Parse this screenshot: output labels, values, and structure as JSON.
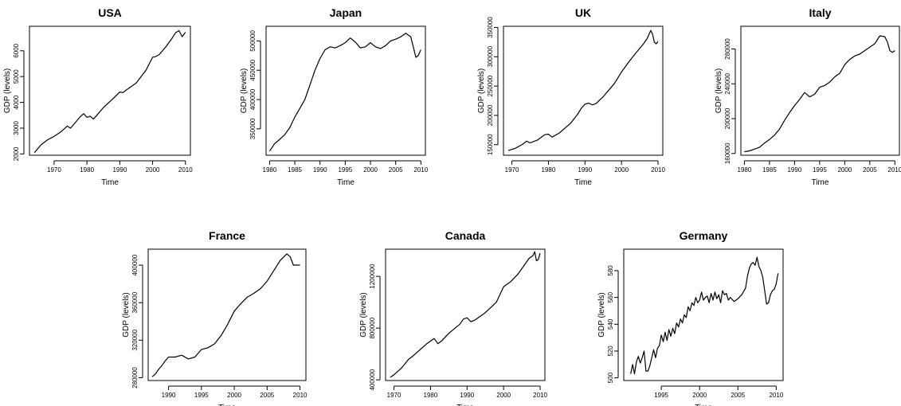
{
  "chart_data": [
    {
      "type": "line",
      "title": "USA",
      "xlabel": "Time",
      "ylabel": "GDP (levels)",
      "xlim": [
        1962.5,
        2011.5
      ],
      "ylim": [
        1950,
        6950
      ],
      "xticks": [
        1970,
        1980,
        1990,
        2000,
        2010
      ],
      "yticks": [
        2000,
        3000,
        4000,
        5000,
        6000
      ],
      "x": [
        1964,
        1966,
        1968,
        1970,
        1972,
        1974,
        1975,
        1976,
        1978,
        1979,
        1980,
        1981,
        1982,
        1983,
        1985,
        1988,
        1990,
        1991,
        1992,
        1995,
        1998,
        2000,
        2001,
        2002,
        2004,
        2006,
        2007,
        2008,
        2009,
        2010
      ],
      "series": [
        {
          "values": [
            2050,
            2350,
            2550,
            2680,
            2850,
            3080,
            3000,
            3150,
            3450,
            3560,
            3420,
            3460,
            3350,
            3500,
            3800,
            4150,
            4400,
            4380,
            4480,
            4750,
            5250,
            5750,
            5780,
            5850,
            6150,
            6500,
            6700,
            6780,
            6550,
            6720
          ]
        }
      ]
    },
    {
      "type": "line",
      "title": "Japan",
      "xlabel": "Time",
      "ylabel": "GDP (levels)",
      "xlim": [
        1979.3,
        2010.9
      ],
      "ylim": [
        305000,
        525000
      ],
      "xticks": [
        1980,
        1985,
        1990,
        1995,
        2000,
        2005,
        2010
      ],
      "yticks": [
        350000,
        400000,
        450000,
        500000
      ],
      "x": [
        1980,
        1981,
        1982,
        1983,
        1984,
        1985,
        1986,
        1987,
        1988,
        1989,
        1990,
        1991,
        1992,
        1993,
        1994,
        1995,
        1996,
        1997,
        1998,
        1999,
        2000,
        2001,
        2002,
        2003,
        2004,
        2005,
        2006,
        2007,
        2008,
        2008.5,
        2009,
        2009.5,
        2010
      ],
      "series": [
        {
          "values": [
            312000,
            325000,
            332000,
            340000,
            352000,
            370000,
            385000,
            400000,
            425000,
            450000,
            470000,
            485000,
            490000,
            488000,
            492000,
            497000,
            505000,
            498000,
            488000,
            490000,
            497000,
            490000,
            487000,
            492000,
            500000,
            503000,
            507000,
            513000,
            507000,
            490000,
            472000,
            475000,
            485000
          ]
        }
      ]
    },
    {
      "type": "line",
      "title": "UK",
      "xlabel": "Time",
      "ylabel": "GDP (levels)",
      "xlim": [
        1967.7,
        2011.3
      ],
      "ylim": [
        132000,
        352000
      ],
      "xticks": [
        1970,
        1980,
        1990,
        2000,
        2010
      ],
      "yticks": [
        150000,
        200000,
        250000,
        300000,
        350000
      ],
      "x": [
        1969,
        1971,
        1973,
        1974,
        1975,
        1977,
        1979,
        1980,
        1981,
        1983,
        1986,
        1988,
        1989,
        1990,
        1991,
        1992,
        1993,
        1995,
        1998,
        2000,
        2002,
        2004,
        2006,
        2007,
        2008,
        2008.5,
        2009,
        2009.5,
        2010
      ],
      "series": [
        {
          "values": [
            140000,
            144000,
            151000,
            156000,
            153000,
            158000,
            167000,
            168000,
            163000,
            170000,
            186000,
            202000,
            212000,
            219000,
            221000,
            218000,
            220000,
            232000,
            254000,
            274000,
            291000,
            307000,
            322000,
            331000,
            345000,
            338000,
            325000,
            322000,
            326000
          ]
        }
      ]
    },
    {
      "type": "line",
      "title": "Italy",
      "xlabel": "Time",
      "ylabel": "GDP (levels)",
      "xlim": [
        1979.3,
        2010.9
      ],
      "ylim": [
        158000,
        306000
      ],
      "xticks": [
        1980,
        1985,
        1990,
        1995,
        2000,
        2005,
        2010
      ],
      "yticks": [
        160000,
        200000,
        240000,
        280000
      ],
      "x": [
        1980,
        1981,
        1982,
        1983,
        1984,
        1985,
        1986,
        1987,
        1988,
        1989,
        1990,
        1991,
        1992,
        1993,
        1994,
        1995,
        1996,
        1997,
        1998,
        1999,
        2000,
        2001,
        2002,
        2003,
        2004,
        2005,
        2006,
        2007,
        2008,
        2008.5,
        2009,
        2009.5,
        2010
      ],
      "series": [
        {
          "values": [
            162000,
            163000,
            165000,
            167000,
            172000,
            176000,
            181000,
            188000,
            198000,
            207000,
            215000,
            222000,
            230000,
            225000,
            228000,
            236000,
            238000,
            242000,
            248000,
            252000,
            262000,
            268000,
            272000,
            274000,
            278000,
            282000,
            286000,
            295000,
            294000,
            288000,
            278000,
            276000,
            278000
          ]
        }
      ]
    },
    {
      "type": "line",
      "title": "France",
      "xlabel": "Time",
      "ylabel": "GDP (levels)",
      "xlim": [
        1986.9,
        2010.9
      ],
      "ylim": [
        277000,
        417000
      ],
      "xticks": [
        1990,
        1995,
        2000,
        2005,
        2010
      ],
      "yticks": [
        280000,
        320000,
        360000,
        400000
      ],
      "x": [
        1987.5,
        1988,
        1988.5,
        1989,
        1989.5,
        1990,
        1991,
        1992,
        1993,
        1994,
        1995,
        1996,
        1997,
        1998,
        1999,
        2000,
        2001,
        2002,
        2003,
        2004,
        2005,
        2006,
        2007,
        2008,
        2008.5,
        2009,
        2009.5,
        2010
      ],
      "series": [
        {
          "values": [
            281000,
            284000,
            289000,
            293000,
            298000,
            302000,
            302000,
            304000,
            300000,
            302000,
            310000,
            312000,
            316000,
            325000,
            337000,
            351000,
            359000,
            366000,
            370000,
            375000,
            383000,
            394000,
            405000,
            412000,
            409000,
            400000,
            400000,
            400000
          ]
        }
      ]
    },
    {
      "type": "line",
      "title": "Canada",
      "xlabel": "Time",
      "ylabel": "GDP (levels)",
      "xlim": [
        1967.7,
        2011.3
      ],
      "ylim": [
        395000,
        1410000
      ],
      "xticks": [
        1970,
        1980,
        1990,
        2000,
        2010
      ],
      "yticks": [
        400000,
        800000,
        1200000
      ],
      "x": [
        1969,
        1970,
        1972,
        1974,
        1975,
        1977,
        1979,
        1980,
        1981,
        1982,
        1983,
        1985,
        1988,
        1989,
        1990,
        1991,
        1992,
        1993,
        1995,
        1998,
        2000,
        2002,
        2004,
        2006,
        2007,
        2008,
        2008.5,
        2009,
        2009.5,
        2010
      ],
      "series": [
        {
          "values": [
            420000,
            440000,
            490000,
            560000,
            580000,
            630000,
            680000,
            700000,
            720000,
            680000,
            700000,
            760000,
            830000,
            870000,
            880000,
            850000,
            860000,
            880000,
            920000,
            1000000,
            1120000,
            1160000,
            1220000,
            1300000,
            1340000,
            1360000,
            1390000,
            1320000,
            1330000,
            1380000
          ]
        }
      ]
    },
    {
      "type": "line",
      "title": "Germany",
      "xlabel": "Time",
      "ylabel": "GDP (levels)",
      "xlim": [
        1990.1,
        2010.9
      ],
      "ylim": [
        498,
        596
      ],
      "xticks": [
        1995,
        2000,
        2005,
        2010
      ],
      "yticks": [
        500,
        520,
        540,
        560,
        580
      ],
      "x": [
        1991,
        1991.25,
        1991.5,
        1991.75,
        1992,
        1992.25,
        1992.5,
        1992.75,
        1993,
        1993.25,
        1993.5,
        1993.75,
        1994,
        1994.25,
        1994.5,
        1994.75,
        1995,
        1995.25,
        1995.5,
        1995.75,
        1996,
        1996.25,
        1996.5,
        1996.75,
        1997,
        1997.25,
        1997.5,
        1997.75,
        1998,
        1998.25,
        1998.5,
        1998.75,
        1999,
        1999.25,
        1999.5,
        1999.75,
        2000,
        2000.25,
        2000.5,
        2000.75,
        2001,
        2001.25,
        2001.5,
        2001.75,
        2002,
        2002.25,
        2002.5,
        2002.75,
        2003,
        2003.25,
        2003.5,
        2003.75,
        2004,
        2004.5,
        2005,
        2005.5,
        2006,
        2006.25,
        2006.5,
        2006.75,
        2007,
        2007.25,
        2007.5,
        2007.75,
        2008,
        2008.25,
        2008.5,
        2008.75,
        2009,
        2009.25,
        2009.5,
        2009.75,
        2010,
        2010.25
      ],
      "series": [
        {
          "values": [
            503,
            510,
            503,
            512,
            516,
            511,
            515,
            520,
            505,
            505,
            509,
            515,
            521,
            515,
            522,
            524,
            532,
            527,
            534,
            528,
            536,
            531,
            537,
            533,
            541,
            538,
            544,
            541,
            547,
            545,
            553,
            550,
            556,
            554,
            560,
            556,
            558,
            564,
            558,
            560,
            561,
            556,
            563,
            558,
            564,
            559,
            562,
            556,
            565,
            562,
            563,
            558,
            560,
            557,
            559,
            562,
            567,
            576,
            582,
            585,
            586,
            584,
            590,
            583,
            580,
            575,
            565,
            555,
            556,
            562,
            565,
            566,
            570,
            578
          ]
        }
      ]
    }
  ]
}
